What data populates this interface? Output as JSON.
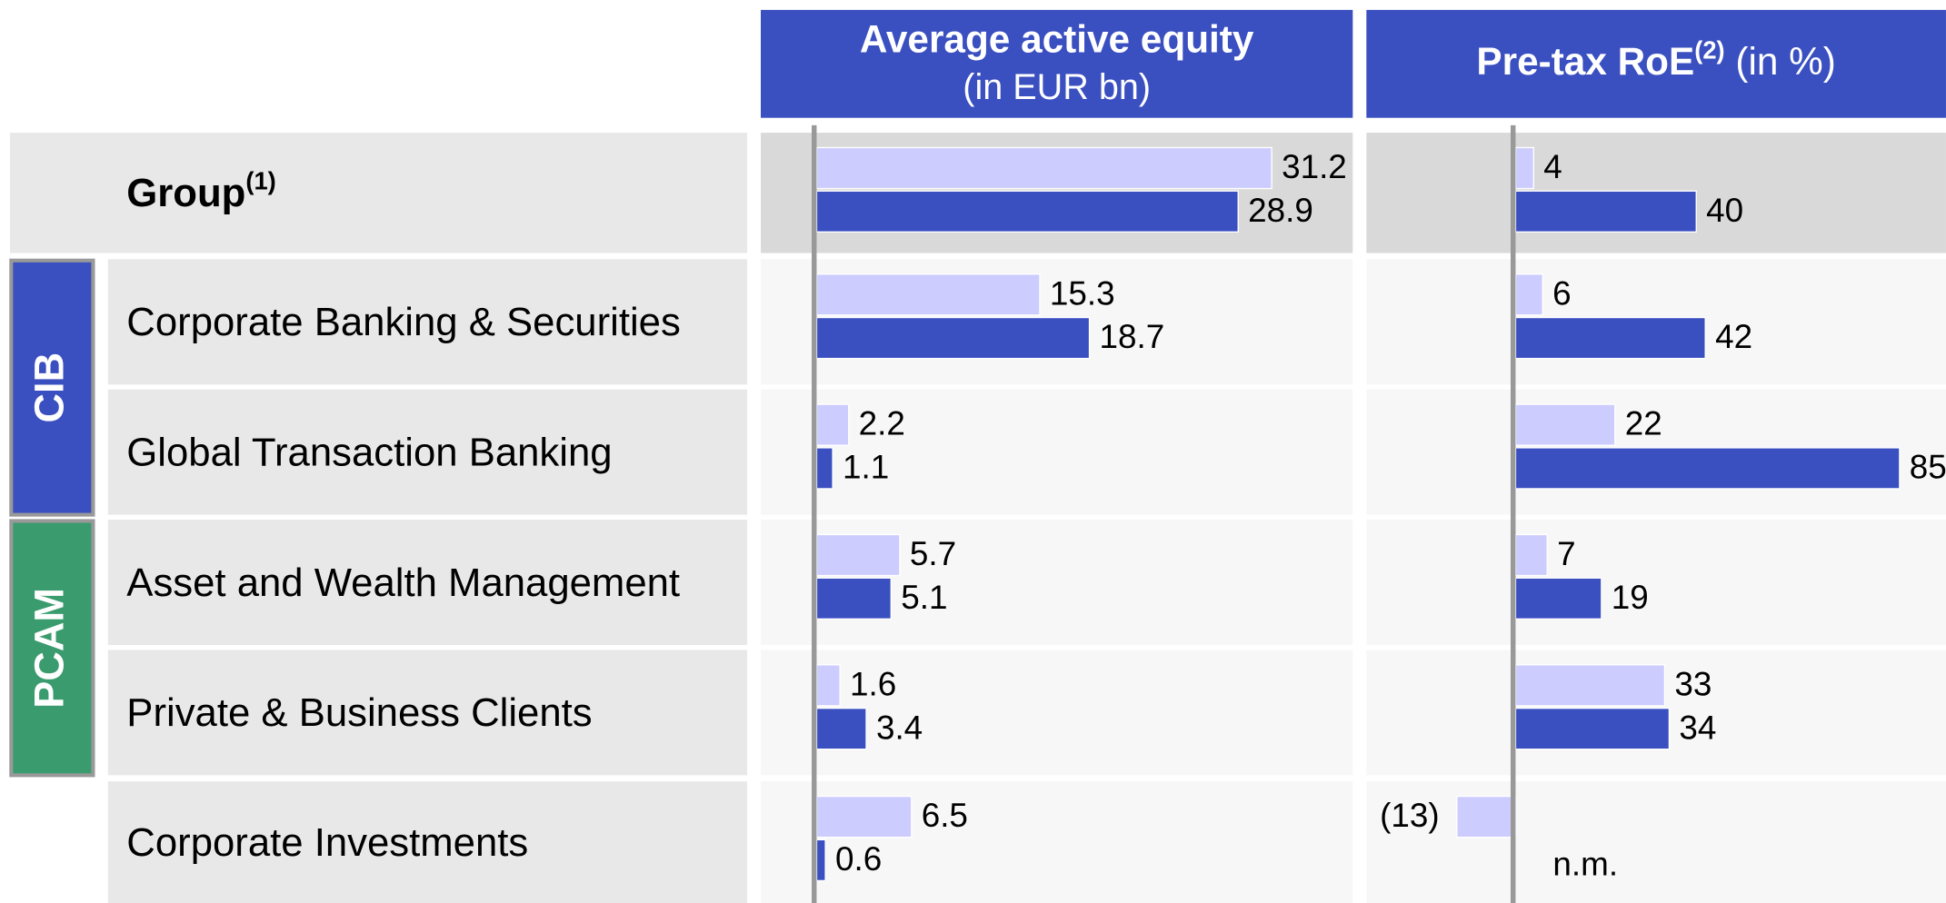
{
  "chart_data": {
    "type": "bar",
    "orientation": "horizontal",
    "categories": [
      "Group",
      "Corporate Banking & Securities",
      "Global Transaction Banking",
      "Asset and Wealth Management",
      "Private & Business Clients",
      "Corporate Investments"
    ],
    "category_superscripts": [
      "(1)",
      null,
      null,
      null,
      null,
      null
    ],
    "groups": [
      {
        "label": "CIB",
        "color": "#3a4fc0",
        "members": [
          1,
          2
        ]
      },
      {
        "label": "PCAM",
        "color": "#3a9c6e",
        "members": [
          3,
          4
        ]
      }
    ],
    "panels": [
      {
        "title": "Average active equity",
        "title_superscript": null,
        "subtitle": "(in EUR bn)",
        "xlim": [
          0,
          36.5
        ],
        "series": [
          {
            "color": "#ccccff",
            "values": [
              31.2,
              15.3,
              2.2,
              5.7,
              1.6,
              6.5
            ]
          },
          {
            "color": "#3a4fc0",
            "values": [
              28.9,
              18.7,
              1.1,
              5.1,
              3.4,
              0.6
            ]
          }
        ]
      },
      {
        "title": "Pre-tax RoE",
        "title_superscript": "(2)",
        "subtitle": "(in %)",
        "xlim": [
          -30,
          95
        ],
        "series": [
          {
            "color": "#ccccff",
            "values": [
              4,
              6,
              22,
              7,
              33,
              -13
            ],
            "value_labels": [
              "4",
              "6",
              "22",
              "7",
              "33",
              "(13)"
            ]
          },
          {
            "color": "#3a4fc0",
            "values": [
              40,
              42,
              85,
              19,
              34,
              null
            ],
            "value_labels": [
              "40",
              "42",
              "85",
              "19",
              "34",
              "n.m."
            ]
          }
        ]
      }
    ]
  }
}
